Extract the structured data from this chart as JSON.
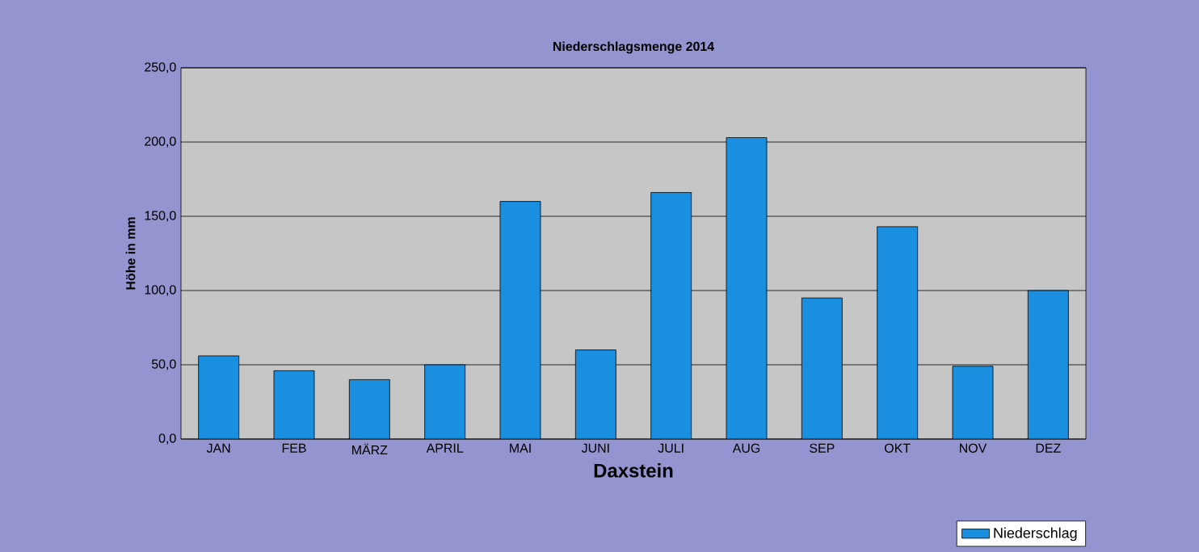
{
  "chart_data": {
    "type": "bar",
    "title": "Niederschlagsmenge  2014",
    "xlabel": "Daxstein",
    "ylabel": "Höhe in mm",
    "categories": [
      "JAN",
      "FEB",
      "MÄRZ",
      "APRIL",
      "MAI",
      "JUNI",
      "JULI",
      "AUG",
      "SEP",
      "OKT",
      "NOV",
      "DEZ"
    ],
    "series": [
      {
        "name": "Niederschlag",
        "color": "#1a8fe0",
        "values": [
          56,
          46,
          40,
          50,
          160,
          60,
          166,
          203,
          95,
          143,
          49,
          100
        ]
      }
    ],
    "ylim": [
      0,
      250
    ],
    "yticks": [
      {
        "value": 0,
        "label": "0,0"
      },
      {
        "value": 50,
        "label": "50,0"
      },
      {
        "value": 100,
        "label": "100,0"
      },
      {
        "value": 150,
        "label": "150,0"
      },
      {
        "value": 200,
        "label": "200,0"
      },
      {
        "value": 250,
        "label": "250,0"
      }
    ],
    "grid": "y",
    "legend": "bottom right"
  }
}
